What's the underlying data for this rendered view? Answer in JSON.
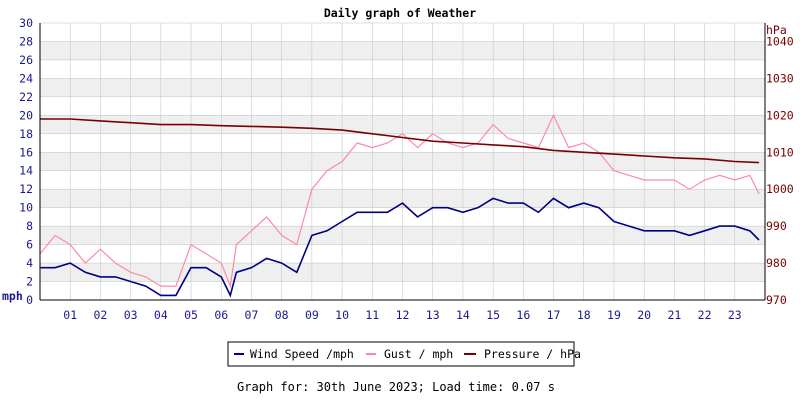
{
  "chart_data": {
    "type": "line",
    "title": "Daily graph of Weather",
    "left_axis": {
      "unit": "mph",
      "ylim": [
        0,
        30
      ],
      "ticks": [
        "0",
        "2",
        "4",
        "6",
        "8",
        "10",
        "12",
        "14",
        "16",
        "18",
        "20",
        "22",
        "24",
        "26",
        "28",
        "30"
      ]
    },
    "right_axis": {
      "unit": "hPa",
      "ylim": [
        970,
        1045
      ],
      "ticks": [
        "970",
        "980",
        "990",
        "1000",
        "1010",
        "1020",
        "1030",
        "1040"
      ]
    },
    "x_axis": {
      "unit": "hour",
      "xlim": [
        0,
        24
      ],
      "ticks": [
        "01",
        "02",
        "03",
        "04",
        "05",
        "06",
        "07",
        "08",
        "09",
        "10",
        "11",
        "12",
        "13",
        "14",
        "15",
        "16",
        "17",
        "18",
        "19",
        "20",
        "21",
        "22",
        "23"
      ]
    },
    "grid": true,
    "legend_position": "bottom",
    "legend": [
      "Wind Speed /mph",
      "Gust / mph",
      "Pressure / hPa"
    ],
    "series": [
      {
        "name": "Wind Speed /mph",
        "axis": "left",
        "color": "#000080",
        "x": [
          0,
          0.5,
          1,
          1.5,
          2,
          2.5,
          3,
          3.5,
          4,
          4.5,
          5,
          5.5,
          6,
          6.3,
          6.5,
          7,
          7.5,
          8,
          8.5,
          9,
          9.5,
          10,
          10.5,
          11,
          11.5,
          12,
          12.5,
          13,
          13.5,
          14,
          14.5,
          15,
          15.5,
          16,
          16.5,
          17,
          17.5,
          18,
          18.5,
          19,
          19.5,
          20,
          20.5,
          21,
          21.5,
          22,
          22.5,
          23,
          23.5,
          23.8
        ],
        "values": [
          3.5,
          3.5,
          4,
          3,
          2.5,
          2.5,
          2,
          1.5,
          0.5,
          0.5,
          3.5,
          3.5,
          2.5,
          0.5,
          3,
          3.5,
          4.5,
          4,
          3,
          7,
          7.5,
          8.5,
          9.5,
          9.5,
          9.5,
          10.5,
          9,
          10,
          10,
          9.5,
          10,
          11,
          10.5,
          10.5,
          9.5,
          11,
          10,
          10.5,
          10,
          8.5,
          8,
          7.5,
          7.5,
          7.5,
          7,
          7.5,
          8,
          8,
          7.5,
          6.5
        ]
      },
      {
        "name": "Gust / mph",
        "axis": "left",
        "color": "#ff88aa",
        "x": [
          0,
          0.5,
          1,
          1.5,
          2,
          2.5,
          3,
          3.5,
          4,
          4.5,
          5,
          5.5,
          6,
          6.3,
          6.5,
          7,
          7.5,
          8,
          8.5,
          9,
          9.5,
          10,
          10.5,
          11,
          11.5,
          12,
          12.5,
          13,
          13.5,
          14,
          14.5,
          15,
          15.5,
          16,
          16.5,
          17,
          17.5,
          18,
          18.5,
          19,
          19.5,
          20,
          20.5,
          21,
          21.5,
          22,
          22.5,
          23,
          23.5,
          23.8
        ],
        "values": [
          5,
          7,
          6,
          4,
          5.5,
          4,
          3,
          2.5,
          1.5,
          1.5,
          6,
          5,
          4,
          1.5,
          6,
          7.5,
          9,
          7,
          6,
          12,
          14,
          15,
          17,
          16.5,
          17,
          18,
          16.5,
          18,
          17,
          16.5,
          17,
          19,
          17.5,
          17,
          16.5,
          20,
          16.5,
          17,
          16,
          14,
          13.5,
          13,
          13,
          13,
          12,
          13,
          13.5,
          13,
          13.5,
          11.5
        ]
      },
      {
        "name": "Pressure / hPa",
        "axis": "right",
        "color": "#7a0000",
        "x": [
          0,
          1,
          2,
          3,
          4,
          5,
          6,
          7,
          8,
          9,
          10,
          11,
          12,
          13,
          14,
          15,
          16,
          17,
          18,
          19,
          20,
          21,
          22,
          23,
          23.8
        ],
        "values": [
          1019,
          1019,
          1018.5,
          1018,
          1017.5,
          1017.5,
          1017.2,
          1017,
          1016.8,
          1016.5,
          1016,
          1015,
          1014,
          1013,
          1012.5,
          1012,
          1011.5,
          1010.5,
          1010,
          1009.5,
          1009,
          1008.5,
          1008.2,
          1007.5,
          1007.2
        ]
      }
    ]
  },
  "footer": {
    "text": "Graph for: 30th June 2023; Load time: 0.07 s"
  },
  "colors": {
    "band": "#efefef",
    "grid": "#c0c0c0",
    "left_axis": "#1a1a8c",
    "right_axis": "#7a0000"
  }
}
